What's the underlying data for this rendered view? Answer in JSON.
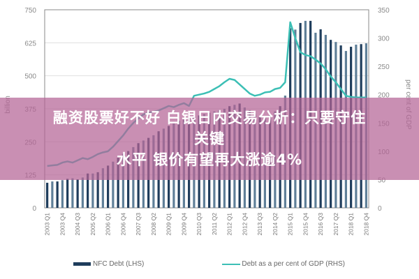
{
  "headline": {
    "line1": "融资股票好不好 白银日内交易分析：只要守住关键",
    "line2": "水平 银价有望再大涨逾4%"
  },
  "chart_data": {
    "type": "bar+line",
    "ylabel_left": "billion",
    "ylabel_right": "per cent of GDP",
    "ylim_left": [
      0,
      750
    ],
    "ylim_right": [
      0,
      350
    ],
    "yticks_left": [
      "0",
      "125",
      "250",
      "375",
      "500",
      "625",
      "750"
    ],
    "yticks_right": [
      "0",
      "50",
      "100",
      "150",
      "200",
      "250",
      "300",
      "350"
    ],
    "grid": true,
    "legend_position": "bottom",
    "x_tick_labels": [
      "2003 Q1",
      "2003 Q4",
      "2004 Q3",
      "2005 Q2",
      "2006 Q1",
      "2006 Q4",
      "2007 Q3",
      "2008 Q2",
      "2009 Q1",
      "2009 Q4",
      "2010 Q3",
      "2011 Q2",
      "2012 Q1",
      "2012 Q4",
      "2013 Q3",
      "2014 Q2",
      "2015 Q1",
      "2015 Q4",
      "2016 Q3",
      "2017 Q2",
      "2018 Q1",
      "2018 Q4"
    ],
    "x_start": "2003 Q1",
    "x_end": "2018 Q4",
    "series": [
      {
        "name": "NFC Debt (LHS)",
        "type": "bar",
        "axis": "left",
        "colors": [
          "#1f3d5c",
          "#5f7f98"
        ],
        "values": [
          95,
          100,
          100,
          105,
          110,
          112,
          108,
          115,
          130,
          130,
          135,
          150,
          160,
          175,
          190,
          205,
          215,
          230,
          245,
          255,
          265,
          275,
          290,
          300,
          310,
          320,
          330,
          335,
          340,
          345,
          350,
          355,
          360,
          365,
          370,
          375,
          385,
          390,
          395,
          380,
          370,
          355,
          345,
          340,
          350,
          365,
          385,
          425,
          680,
          675,
          700,
          708,
          708,
          663,
          676,
          655,
          636,
          628,
          615,
          594,
          610,
          618,
          620,
          623
        ]
      },
      {
        "name": "Debt as a per cent of GDP (RHS)",
        "type": "line",
        "axis": "right",
        "color": "#3cbfb5",
        "values": [
          74,
          75,
          76,
          80,
          82,
          80,
          84,
          88,
          86,
          90,
          95,
          98,
          100,
          108,
          118,
          128,
          140,
          150,
          158,
          165,
          168,
          170,
          172,
          176,
          180,
          178,
          182,
          185,
          180,
          198,
          200,
          202,
          205,
          210,
          215,
          222,
          228,
          226,
          218,
          210,
          202,
          198,
          200,
          204,
          205,
          210,
          212,
          222,
          328,
          300,
          275,
          270,
          268,
          262,
          255,
          245,
          232,
          222,
          210,
          198,
          196,
          195,
          195,
          195
        ]
      }
    ]
  }
}
